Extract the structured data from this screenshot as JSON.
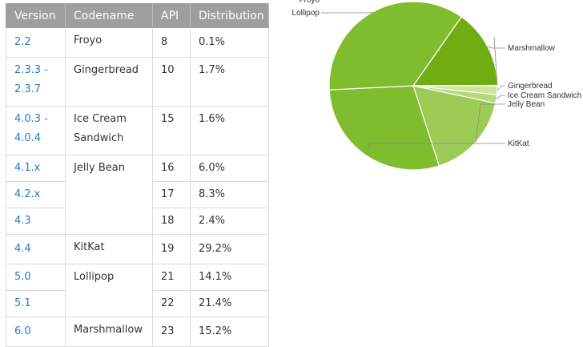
{
  "table": {
    "headers": [
      "Version",
      "Codename",
      "API",
      "Distribution"
    ],
    "rows": [
      {
        "version": "2.2",
        "codename": "Froyo",
        "api": "8",
        "dist": "0.1%"
      },
      {
        "version": "2.3.3 -\n2.3.7",
        "codename": "Gingerbread",
        "api": "10",
        "dist": "1.7%"
      },
      {
        "version": "4.0.3 -\n4.0.4",
        "codename": "Ice Cream\nSandwich",
        "api": "15",
        "dist": "1.6%"
      },
      {
        "version": "4.1.x",
        "codename": "Jelly Bean",
        "api": "16",
        "dist": "6.0%"
      },
      {
        "version": "4.2.x",
        "codename": "",
        "api": "17",
        "dist": "8.3%"
      },
      {
        "version": "4.3",
        "codename": "",
        "api": "18",
        "dist": "2.4%"
      },
      {
        "version": "4.4",
        "codename": "KitKat",
        "api": "19",
        "dist": "29.2%"
      },
      {
        "version": "5.0",
        "codename": "Lollipop",
        "api": "21",
        "dist": "14.1%"
      },
      {
        "version": "5.1",
        "codename": "",
        "api": "22",
        "dist": "21.4%"
      },
      {
        "version": "6.0",
        "codename": "Marshmallow",
        "api": "23",
        "dist": "15.2%"
      }
    ]
  },
  "chart_data": {
    "type": "pie",
    "categories": [
      "Marshmallow",
      "Froyo",
      "Gingerbread",
      "Ice Cream Sandwich",
      "Jelly Bean",
      "KitKat",
      "Lollipop"
    ],
    "values": [
      15.2,
      0.1,
      1.7,
      1.6,
      16.7,
      29.2,
      35.5
    ],
    "colors": [
      "#6fad13",
      "#dcedb9",
      "#cbe59a",
      "#b4d97a",
      "#9dcc56",
      "#7fbd2f",
      "#7fbd2f"
    ],
    "legend": "none",
    "title": ""
  },
  "colors": {
    "header_bg": "#9e9e9e",
    "link": "#2b7bb9",
    "border": "#dcdcdc"
  }
}
